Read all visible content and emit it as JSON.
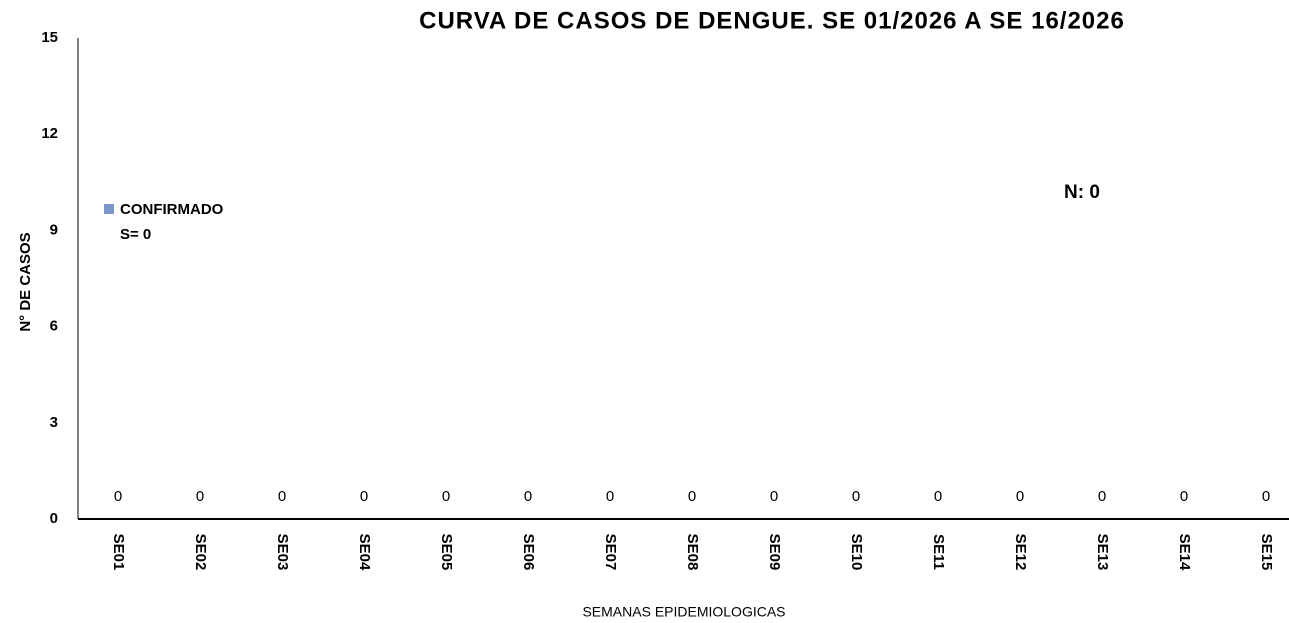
{
  "chart_data": {
    "type": "bar",
    "title": "CURVA DE CASOS DE DENGUE. SE 01/2026 A SE 16/2026",
    "x_label": "SEMANAS EPIDEMIOLOGICAS",
    "y_label": "N° DE CASOS",
    "annotations": [
      "S= 0",
      "N: 0"
    ],
    "categories": [
      "SE01",
      "SE02",
      "SE03",
      "SE04",
      "SE05",
      "SE06",
      "SE07",
      "SE08",
      "SE09",
      "SE10",
      "SE11",
      "SE12",
      "SE13",
      "SE14",
      "SE15"
    ],
    "series": [
      {
        "name": "CONFIRMADO",
        "color": "#7b96c8",
        "values": [
          0,
          0,
          0,
          0,
          0,
          0,
          0,
          0,
          0,
          0,
          0,
          0,
          0,
          0,
          0
        ]
      }
    ],
    "ylim": [
      0,
      15
    ],
    "yticks": [
      0,
      3,
      6,
      9,
      12,
      15
    ],
    "grid": false,
    "legend": "left"
  }
}
